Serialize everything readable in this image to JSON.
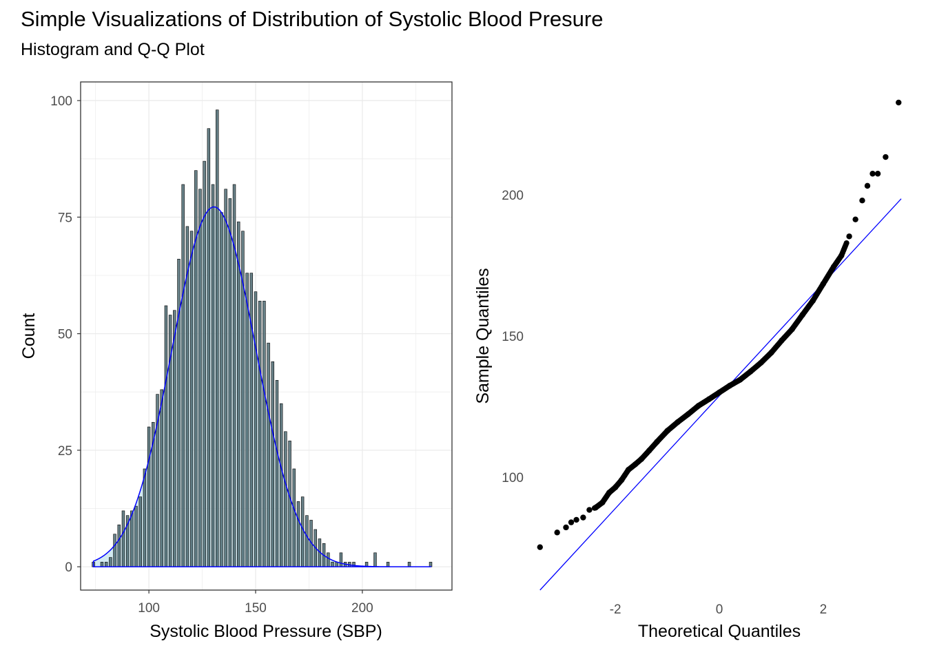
{
  "header": {
    "title": "Simple Visualizations of Distribution of Systolic Blood Presure",
    "subtitle": "Histogram and Q-Q Plot"
  },
  "colors": {
    "bar_outline": "#000000",
    "bar_fill": "#4d6b73",
    "density_fill": "#add8e6",
    "density_line": "#0000ff",
    "qq_points": "#000000",
    "qq_line": "#0000ff",
    "grid": "#ebebeb"
  },
  "chart_data": [
    {
      "type": "bar",
      "subtype": "histogram_with_density",
      "xlabel": "Systolic Blood Pressure (SBP)",
      "ylabel": "Count",
      "xlim": [
        68,
        242
      ],
      "ylim": [
        -5,
        104
      ],
      "x_ticks": [
        "100",
        "150",
        "200"
      ],
      "y_ticks": [
        "0",
        "25",
        "50",
        "75",
        "100"
      ],
      "grid": true,
      "bin_width": 2,
      "categories": [
        74,
        76,
        78,
        80,
        82,
        84,
        86,
        88,
        90,
        92,
        94,
        96,
        98,
        100,
        102,
        104,
        106,
        108,
        110,
        112,
        114,
        116,
        118,
        120,
        122,
        124,
        126,
        128,
        130,
        132,
        134,
        136,
        138,
        140,
        142,
        144,
        146,
        148,
        150,
        152,
        154,
        156,
        158,
        160,
        162,
        164,
        166,
        168,
        170,
        172,
        174,
        176,
        178,
        180,
        182,
        184,
        186,
        188,
        190,
        192,
        194,
        196,
        198,
        200,
        202,
        204,
        206,
        208,
        210,
        212,
        214,
        216,
        218,
        220,
        222,
        224,
        226,
        228,
        230,
        232
      ],
      "values": [
        1,
        0,
        1,
        1,
        2,
        7,
        9,
        12,
        11,
        12,
        13,
        15,
        21,
        30,
        31,
        37,
        38,
        56,
        54,
        55,
        66,
        82,
        73,
        72,
        85,
        81,
        87,
        94,
        82,
        98,
        76,
        81,
        79,
        82,
        74,
        72,
        63,
        63,
        59,
        57,
        57,
        48,
        44,
        40,
        35,
        29,
        27,
        21,
        14,
        15,
        11,
        10,
        8,
        6,
        5,
        3,
        1,
        1,
        3,
        1,
        1,
        1,
        0,
        0,
        1,
        0,
        3,
        0,
        0,
        1,
        0,
        0,
        0,
        0,
        1,
        0,
        0,
        0,
        0,
        1
      ],
      "density_curve": {
        "mean": 130.5,
        "sd": 19.6,
        "peak_count": 77.2,
        "x_range": [
          74,
          232
        ]
      }
    },
    {
      "type": "scatter",
      "subtype": "qq_plot",
      "xlabel": "Theoretical Quantiles",
      "ylabel": "Sample Quantiles",
      "x_ticks": [
        "-2",
        "0",
        "2"
      ],
      "y_ticks": [
        "100",
        "150",
        "200"
      ],
      "xlim": [
        -3.5,
        3.5
      ],
      "ylim": [
        60,
        240
      ],
      "grid": false,
      "reference_line": {
        "x": [
          -3.45,
          3.5
        ],
        "y": [
          60.0,
          198.6
        ]
      },
      "series": [
        {
          "x": [
            -3.45,
            -3.12,
            -2.95,
            -2.85,
            -2.75,
            -2.62,
            -2.5,
            -2.38,
            -2.25,
            -2.12,
            -2.0,
            -1.88,
            -1.75,
            -1.62,
            -1.5,
            -1.35,
            -1.2,
            -1.0,
            -0.8,
            -0.6,
            -0.4,
            -0.2,
            0.0,
            0.2,
            0.4,
            0.6,
            0.8,
            1.0,
            1.2,
            1.4,
            1.6,
            1.8,
            2.0,
            2.2,
            2.35,
            2.5,
            2.62,
            2.75,
            2.85,
            2.95,
            3.05,
            3.2,
            3.45
          ],
          "y": [
            75.2,
            80.4,
            82.2,
            84.0,
            84.9,
            85.7,
            88.4,
            89.2,
            91.0,
            94.5,
            96.4,
            99.0,
            102.6,
            104.5,
            106.4,
            109.4,
            112.5,
            116.4,
            119.5,
            122.3,
            125.3,
            127.6,
            130.0,
            132.4,
            134.5,
            137.4,
            140.5,
            144.1,
            148.4,
            152.4,
            157.5,
            162.5,
            168.5,
            174.5,
            178.5,
            185.3,
            191.3,
            198.0,
            203.2,
            207.5,
            207.5,
            213.4,
            232.7
          ]
        }
      ]
    }
  ]
}
